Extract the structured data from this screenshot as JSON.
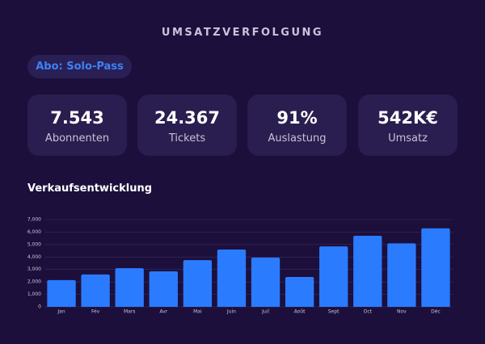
{
  "header": {
    "title": "UMSATZVERFOLGUNG",
    "badge": "Abo: Solo-Pass"
  },
  "kpis": [
    {
      "value": "7.543",
      "label": "Abonnenten"
    },
    {
      "value": "24.367",
      "label": "Tickets"
    },
    {
      "value": "91%",
      "label": "Auslastung"
    },
    {
      "value": "542K€",
      "label": "Umsatz"
    }
  ],
  "chart_data": {
    "type": "bar",
    "title": "Verkaufsentwicklung",
    "categories": [
      "Jan",
      "Fév",
      "Mars",
      "Avr",
      "Mai",
      "Juin",
      "Juil",
      "Août",
      "Sept",
      "Oct",
      "Nov",
      "Déc"
    ],
    "values": [
      2150,
      2600,
      3100,
      2850,
      3750,
      4600,
      3950,
      2400,
      4850,
      5700,
      5100,
      6300
    ],
    "color": "#2b7bff",
    "ylim": [
      0,
      7000
    ],
    "yticks": [
      0,
      {
        "value": 1000,
        "label": "1,000"
      },
      {
        "value": 2000,
        "label": "2,000"
      },
      {
        "value": 3000,
        "label": "3,000"
      },
      {
        "value": 4000,
        "label": "4,000"
      },
      {
        "value": 5000,
        "label": "5,000"
      },
      {
        "value": 6000,
        "label": "6,000"
      },
      {
        "value": 7000,
        "label": "7,000"
      }
    ],
    "grid": true
  }
}
